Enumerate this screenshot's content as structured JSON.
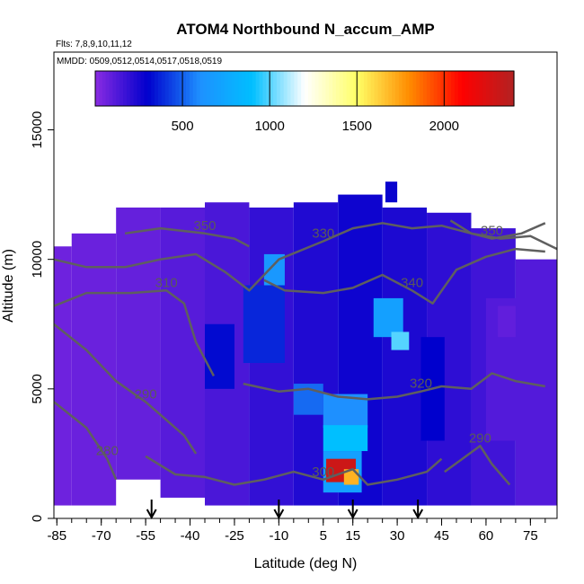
{
  "chart_data": {
    "type": "heatmap",
    "title": "ATOM4 Northbound N_accum_AMP",
    "flights_note": "Flts: 7,8,9,10,11,12",
    "dates_note": "MMDD: 0509,0512,0514,0517,0518,0519",
    "xlabel": "Latitude (deg N)",
    "ylabel": "Altitude (m)",
    "xlim": [
      -86,
      84
    ],
    "ylim": [
      0,
      18000
    ],
    "x_ticks": [
      "-85",
      "-70",
      "-55",
      "-40",
      "-25",
      "-10",
      "5",
      "15",
      "30",
      "45",
      "60",
      "75"
    ],
    "x_tick_values": [
      -85,
      -70,
      -55,
      -40,
      -25,
      -10,
      5,
      15,
      30,
      45,
      60,
      75
    ],
    "y_ticks": [
      "0",
      "5000",
      "10000",
      "15000"
    ],
    "y_tick_values": [
      0,
      5000,
      10000,
      15000
    ],
    "colorbar": {
      "range": [
        0,
        2400
      ],
      "ticks": [
        "500",
        "1000",
        "1500",
        "2000"
      ],
      "tick_values": [
        500,
        1000,
        1500,
        2000
      ],
      "colors": [
        "#8a2be2",
        "#0000cd",
        "#1e90ff",
        "#00bfff",
        "#ffffff",
        "#ffff66",
        "#ff8c00",
        "#ff0000",
        "#b22222"
      ]
    },
    "regions": [
      {
        "lat": [
          -86,
          -80
        ],
        "alt": [
          500,
          10500
        ],
        "value": 60
      },
      {
        "lat": [
          -80,
          -65
        ],
        "alt": [
          500,
          11000
        ],
        "value": 70
      },
      {
        "lat": [
          -65,
          -50
        ],
        "alt": [
          1500,
          12000
        ],
        "value": 80
      },
      {
        "lat": [
          -50,
          -35
        ],
        "alt": [
          800,
          12000
        ],
        "value": 110
      },
      {
        "lat": [
          -35,
          -20
        ],
        "alt": [
          500,
          12200
        ],
        "value": 140
      },
      {
        "lat": [
          -20,
          -5
        ],
        "alt": [
          500,
          12000
        ],
        "value": 190
      },
      {
        "lat": [
          -5,
          10
        ],
        "alt": [
          500,
          12200
        ],
        "value": 230
      },
      {
        "lat": [
          10,
          25
        ],
        "alt": [
          500,
          12500
        ],
        "value": 270
      },
      {
        "lat": [
          25,
          40
        ],
        "alt": [
          500,
          12000
        ],
        "value": 240
      },
      {
        "lat": [
          40,
          55
        ],
        "alt": [
          500,
          11800
        ],
        "value": 200
      },
      {
        "lat": [
          55,
          70
        ],
        "alt": [
          500,
          11200
        ],
        "value": 160
      },
      {
        "lat": [
          70,
          84
        ],
        "alt": [
          500,
          10000
        ],
        "value": 120
      },
      {
        "lat": [
          -35,
          -25
        ],
        "alt": [
          5000,
          7500
        ],
        "value": 320
      },
      {
        "lat": [
          -22,
          -8
        ],
        "alt": [
          6000,
          9000
        ],
        "value": 380
      },
      {
        "lat": [
          -15,
          -8
        ],
        "alt": [
          9000,
          10200
        ],
        "value": 650
      },
      {
        "lat": [
          -5,
          5
        ],
        "alt": [
          4000,
          5200
        ],
        "value": 520
      },
      {
        "lat": [
          5,
          20
        ],
        "alt": [
          3500,
          4800
        ],
        "value": 600
      },
      {
        "lat": [
          5,
          20
        ],
        "alt": [
          2600,
          3600
        ],
        "value": 900
      },
      {
        "lat": [
          22,
          32
        ],
        "alt": [
          7000,
          8500
        ],
        "value": 700
      },
      {
        "lat": [
          28,
          34
        ],
        "alt": [
          6500,
          7200
        ],
        "value": 1000
      },
      {
        "lat": [
          38,
          46
        ],
        "alt": [
          3000,
          7000
        ],
        "value": 300
      },
      {
        "lat": [
          60,
          75
        ],
        "alt": [
          3000,
          8500
        ],
        "value": 120
      },
      {
        "lat": [
          64,
          70
        ],
        "alt": [
          7000,
          8200
        ],
        "value": 90
      },
      {
        "lat": [
          5,
          18
        ],
        "alt": [
          1000,
          2600
        ],
        "value": 700
      },
      {
        "lat": [
          6,
          16
        ],
        "alt": [
          1400,
          2300
        ],
        "value": 2300
      },
      {
        "lat": [
          12,
          17
        ],
        "alt": [
          1300,
          1900
        ],
        "value": 1700
      },
      {
        "lat": [
          26,
          30
        ],
        "alt": [
          12200,
          13000
        ],
        "value": 280
      }
    ],
    "contours": [
      {
        "label": "350",
        "points": [
          [
            -62,
            11000
          ],
          [
            -50,
            11200
          ],
          [
            -35,
            11000
          ],
          [
            -25,
            10800
          ],
          [
            -20,
            10500
          ]
        ]
      },
      {
        "label": "330",
        "points": [
          [
            -86,
            10000
          ],
          [
            -75,
            9700
          ],
          [
            -62,
            9700
          ],
          [
            -50,
            10000
          ],
          [
            -38,
            10200
          ],
          [
            -28,
            9500
          ],
          [
            -20,
            8800
          ],
          [
            -10,
            10000
          ],
          [
            5,
            10700
          ],
          [
            15,
            11200
          ],
          [
            25,
            11400
          ],
          [
            35,
            11200
          ],
          [
            45,
            11300
          ],
          [
            55,
            11000
          ],
          [
            65,
            10800
          ],
          [
            75,
            10900
          ],
          [
            84,
            10400
          ]
        ]
      },
      {
        "label": "310",
        "points": [
          [
            -86,
            8200
          ],
          [
            -75,
            8700
          ],
          [
            -60,
            8700
          ],
          [
            -48,
            8800
          ],
          [
            -42,
            8300
          ],
          [
            -38,
            6800
          ],
          [
            -32,
            5500
          ]
        ]
      },
      {
        "label": "340",
        "points": [
          [
            -15,
            9200
          ],
          [
            -8,
            8800
          ],
          [
            5,
            8700
          ],
          [
            15,
            8900
          ],
          [
            25,
            9400
          ],
          [
            35,
            8800
          ],
          [
            42,
            8300
          ],
          [
            50,
            9600
          ],
          [
            60,
            10100
          ],
          [
            70,
            10400
          ],
          [
            80,
            10300
          ]
        ]
      },
      {
        "label": "320",
        "points": [
          [
            -22,
            5200
          ],
          [
            -10,
            4900
          ],
          [
            0,
            5000
          ],
          [
            10,
            4700
          ],
          [
            20,
            4600
          ],
          [
            30,
            4700
          ],
          [
            38,
            4900
          ],
          [
            45,
            5100
          ],
          [
            55,
            5000
          ],
          [
            62,
            5600
          ],
          [
            70,
            5300
          ],
          [
            80,
            5100
          ]
        ]
      },
      {
        "label": "290",
        "points": [
          [
            -86,
            7500
          ],
          [
            -75,
            6500
          ],
          [
            -65,
            5300
          ],
          [
            -55,
            4500
          ],
          [
            -48,
            3800
          ],
          [
            -42,
            3200
          ],
          [
            -38,
            2500
          ]
        ]
      },
      {
        "label": "280",
        "points": [
          [
            -86,
            4500
          ],
          [
            -75,
            3500
          ],
          [
            -68,
            2300
          ],
          [
            -65,
            1500
          ]
        ]
      },
      {
        "label": "300",
        "points": [
          [
            -55,
            2400
          ],
          [
            -45,
            1700
          ],
          [
            -35,
            1600
          ],
          [
            -25,
            1300
          ],
          [
            -15,
            1500
          ],
          [
            -5,
            1800
          ],
          [
            5,
            1500
          ],
          [
            15,
            1900
          ],
          [
            20,
            1300
          ],
          [
            30,
            1500
          ],
          [
            40,
            1800
          ],
          [
            45,
            2300
          ]
        ]
      },
      {
        "label": "290",
        "points": [
          [
            46,
            1800
          ],
          [
            52,
            2300
          ],
          [
            58,
            2800
          ],
          [
            62,
            2100
          ],
          [
            68,
            1300
          ]
        ]
      },
      {
        "label": "350",
        "points": [
          [
            48,
            11500
          ],
          [
            55,
            11000
          ],
          [
            62,
            10800
          ],
          [
            72,
            11000
          ],
          [
            80,
            11400
          ]
        ]
      }
    ],
    "arrows_lat": [
      -53,
      -10,
      15,
      37
    ]
  }
}
